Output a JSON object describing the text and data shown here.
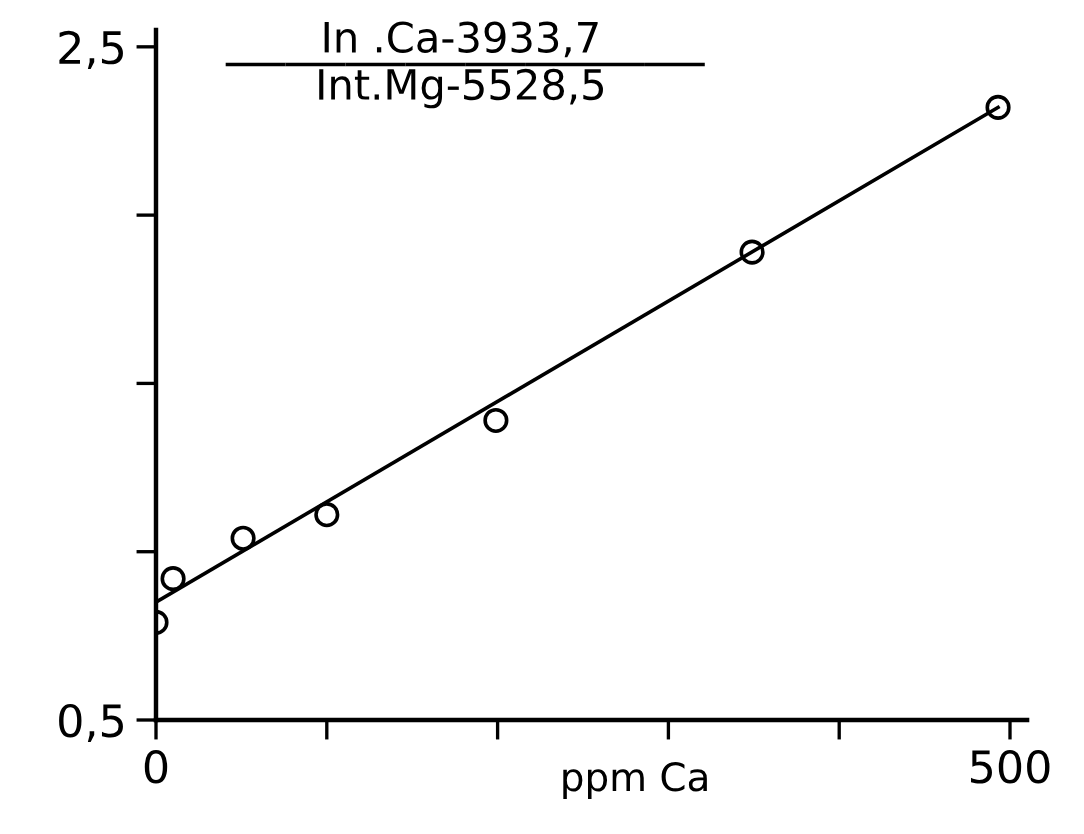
{
  "chart_data": {
    "type": "scatter",
    "xlabel": "ppm Ca",
    "annotations": [
      "In .Ca-3933,7",
      "Int.Mg-5528,5"
    ],
    "xlim": [
      0,
      510
    ],
    "ylim": [
      0.5,
      2.55
    ],
    "xticks": [
      0,
      {
        "value": 100,
        "label": null
      },
      {
        "value": 200,
        "label": null
      },
      {
        "value": 300,
        "label": null
      },
      {
        "value": 400,
        "label": null
      },
      500
    ],
    "yticks": [
      {
        "value": 0.5,
        "label": "0,5"
      },
      {
        "value": 1.0,
        "label": null
      },
      {
        "value": 1.5,
        "label": null
      },
      {
        "value": 2.0,
        "label": null
      },
      {
        "value": 2.5,
        "label": "2,5"
      }
    ],
    "grid": false,
    "series": [
      {
        "color": "#000000",
        "marker": "circle",
        "x": [
          0,
          10,
          51,
          100,
          199,
          349,
          493
        ],
        "values": [
          0.79,
          0.92,
          1.04,
          1.11,
          1.39,
          1.89,
          2.32
        ]
      },
      {
        "type": "line",
        "color": "#000000",
        "line_style": "solid",
        "marker": "none",
        "x": [
          0,
          493
        ],
        "values": [
          0.85,
          2.32
        ]
      }
    ]
  }
}
